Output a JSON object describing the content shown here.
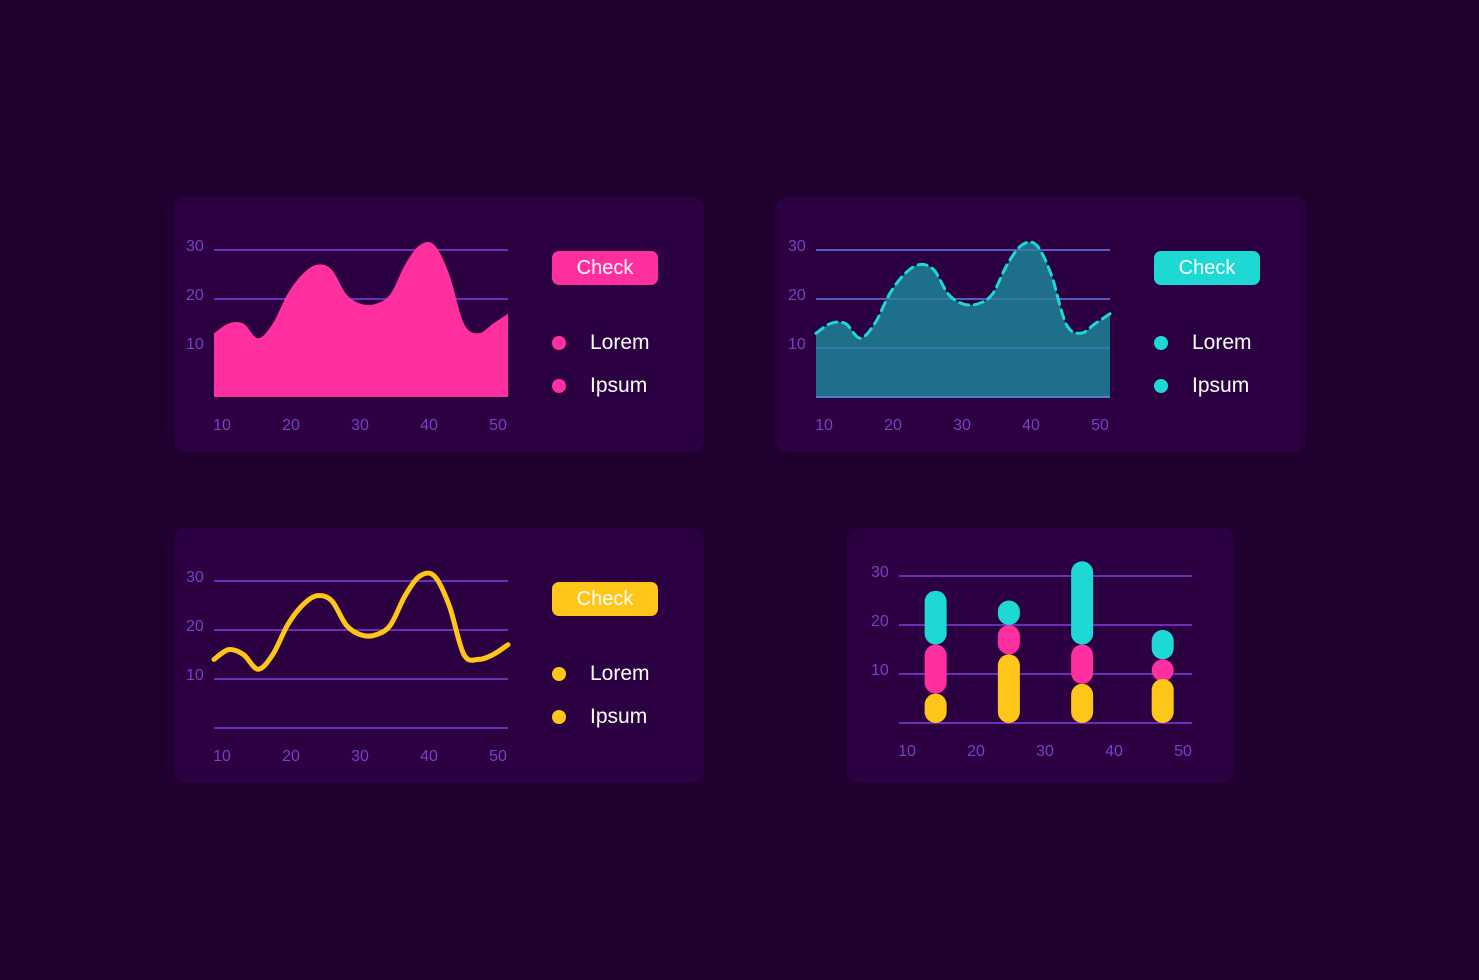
{
  "panels": [
    {
      "button": {
        "label": "Check",
        "color": "#ff2fa0"
      },
      "legend": [
        {
          "label": "Lorem"
        },
        {
          "label": "Ipsum"
        }
      ],
      "legend_color": "#ff2fa0"
    },
    {
      "button": {
        "label": "Check",
        "color": "#1ed9d3"
      },
      "legend": [
        {
          "label": "Lorem"
        },
        {
          "label": "Ipsum"
        }
      ],
      "legend_color": "#1ed9d3"
    },
    {
      "button": {
        "label": "Check",
        "color": "#ffc61a"
      },
      "legend": [
        {
          "label": "Lorem"
        },
        {
          "label": "Ipsum"
        }
      ],
      "legend_color": "#ffc61a"
    },
    {}
  ],
  "chart_data": [
    {
      "type": "area",
      "color": "#ff2fa0",
      "x": [
        10,
        12,
        14,
        16,
        18,
        20,
        22,
        24,
        26,
        28,
        30,
        32,
        34,
        36,
        38,
        40,
        42,
        44,
        46,
        48,
        50
      ],
      "y": [
        13,
        15,
        15,
        12,
        15,
        21,
        25,
        27,
        26,
        21,
        19,
        19,
        21,
        27,
        31,
        31,
        25,
        15,
        13,
        15,
        17
      ],
      "x_ticks": [
        10,
        20,
        30,
        40,
        50
      ],
      "y_ticks": [
        10,
        20,
        30
      ],
      "xlim": [
        10,
        50
      ],
      "ylim": [
        0,
        31
      ],
      "grid_y": [
        20,
        30
      ]
    },
    {
      "type": "area",
      "color": "#1ed9d3",
      "fill": "#1e6f8a",
      "line_style": "dashed",
      "x": [
        10,
        12,
        14,
        16,
        18,
        20,
        22,
        24,
        26,
        28,
        30,
        32,
        34,
        36,
        38,
        40,
        42,
        44,
        46,
        48,
        50
      ],
      "y": [
        13,
        15,
        15,
        12,
        15,
        21,
        25,
        27,
        26,
        21,
        19,
        19,
        21,
        27,
        31,
        31,
        25,
        15,
        13,
        15,
        17
      ],
      "x_ticks": [
        10,
        20,
        30,
        40,
        50
      ],
      "y_ticks": [
        10,
        20,
        30
      ],
      "xlim": [
        10,
        50
      ],
      "ylim": [
        0,
        31
      ],
      "grid_y": [
        10,
        20,
        30
      ]
    },
    {
      "type": "line",
      "color": "#ffc61a",
      "x": [
        10,
        12,
        14,
        16,
        18,
        20,
        22,
        24,
        26,
        28,
        30,
        32,
        34,
        36,
        38,
        40,
        42,
        44,
        46,
        48,
        50
      ],
      "y": [
        14,
        16,
        15,
        12,
        15,
        21,
        25,
        27,
        26,
        21,
        19,
        19,
        21,
        27,
        31,
        31,
        25,
        15,
        14,
        15,
        17
      ],
      "x_ticks": [
        10,
        20,
        30,
        40,
        50
      ],
      "y_ticks": [
        10,
        20,
        30
      ],
      "xlim": [
        10,
        50
      ],
      "ylim": [
        0,
        31
      ],
      "grid_y": [
        0,
        10,
        20,
        30
      ]
    },
    {
      "type": "bar",
      "stacked": true,
      "x": [
        15,
        25,
        35,
        46
      ],
      "series": [
        {
          "color": "#ffc61a",
          "values": [
            6,
            14,
            8,
            9
          ]
        },
        {
          "color": "#ff2fa0",
          "values": [
            10,
            6,
            8,
            4
          ]
        },
        {
          "color": "#1ed9d3",
          "values": [
            11,
            5,
            17,
            6
          ]
        }
      ],
      "x_ticks": [
        10,
        20,
        30,
        40,
        50
      ],
      "y_ticks": [
        10,
        20,
        30
      ],
      "xlim": [
        10,
        50
      ],
      "ylim": [
        0,
        30
      ],
      "grid_y": [
        0,
        10,
        20,
        30
      ]
    }
  ]
}
